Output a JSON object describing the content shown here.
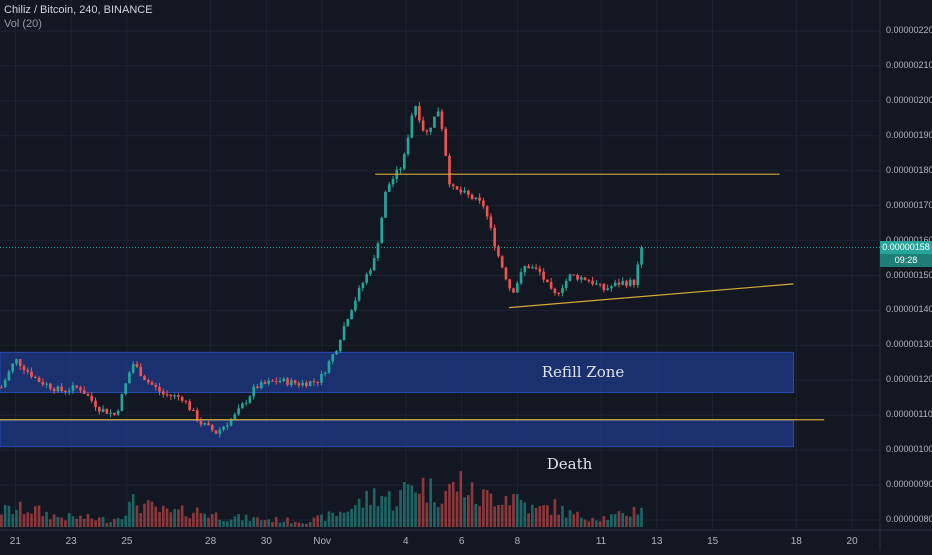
{
  "header": {
    "symbol_line": "Chiliz / Bitcoin, 240, BINANCE",
    "volume_line": "Vol (20)"
  },
  "price_tag": {
    "price": "0.00000158",
    "countdown": "09:28"
  },
  "annotations": {
    "refill_zone": "Refill Zone",
    "death": "Death"
  },
  "colors": {
    "background": "#131722",
    "grid": "#1f2433",
    "up": "#26a69a",
    "down": "#ef5350",
    "zone": "#1e3a8a",
    "trendline": "#d4a93a",
    "price_line": "#26a69a"
  },
  "chart_data": {
    "type": "candlestick",
    "title": "Chiliz / Bitcoin, 240, BINANCE",
    "indicator": "Vol (20)",
    "y_tick_labels": [
      "0.00000220",
      "0.00000210",
      "0.00000200",
      "0.00000190",
      "0.00000180",
      "0.00000170",
      "0.00000160",
      "0.00000150",
      "0.00000140",
      "0.00000130",
      "0.00000120",
      "0.00000110",
      "0.00000100",
      "0.00000090",
      "0.00000080"
    ],
    "y_tick_values": [
      2.2e-06,
      2.1e-06,
      2e-06,
      1.9e-06,
      1.8e-06,
      1.7e-06,
      1.6e-06,
      1.5e-06,
      1.4e-06,
      1.3e-06,
      1.2e-06,
      1.1e-06,
      1e-06,
      9e-07,
      8e-07
    ],
    "ylim": [
      7.8e-07,
      2.24e-06
    ],
    "x_tick_labels": [
      "21",
      "23",
      "25",
      "28",
      "30",
      "Nov",
      "4",
      "6",
      "8",
      "11",
      "13",
      "15",
      "18",
      "20"
    ],
    "x_tick_values": [
      21,
      23,
      25,
      28,
      30,
      32,
      35,
      37,
      39,
      42,
      44,
      46,
      49,
      51
    ],
    "xlim": [
      20.45,
      52.0
    ],
    "last_price": 1.58e-06,
    "zones": [
      {
        "label": "Refill Zone",
        "from_x": 20.45,
        "to_x": 48.9,
        "low": 1.165e-06,
        "high": 1.28e-06
      },
      {
        "label": "Death",
        "from_x": 20.45,
        "to_x": 48.9,
        "low": 1.01e-06,
        "high": 1.085e-06
      }
    ],
    "lines": [
      {
        "x1": 33.9,
        "y1": 1.79e-06,
        "x2": 48.4,
        "y2": 1.79e-06
      },
      {
        "x1": 20.45,
        "y1": 1.087e-06,
        "x2": 50.0,
        "y2": 1.087e-06
      },
      {
        "x1": 38.7,
        "y1": 1.408e-06,
        "x2": 48.9,
        "y2": 1.476e-06
      }
    ],
    "key_points": [
      {
        "x": 20.5,
        "y": 1.18e-06
      },
      {
        "x": 21.0,
        "y": 1.26e-06
      },
      {
        "x": 21.8,
        "y": 1.2e-06
      },
      {
        "x": 22.6,
        "y": 1.17e-06
      },
      {
        "x": 23.3,
        "y": 1.18e-06
      },
      {
        "x": 24.0,
        "y": 1.12e-06
      },
      {
        "x": 24.6,
        "y": 1.1e-06
      },
      {
        "x": 25.2,
        "y": 1.25e-06
      },
      {
        "x": 25.7,
        "y": 1.2e-06
      },
      {
        "x": 26.3,
        "y": 1.16e-06
      },
      {
        "x": 27.0,
        "y": 1.15e-06
      },
      {
        "x": 27.6,
        "y": 1.08e-06
      },
      {
        "x": 28.2,
        "y": 1.05e-06
      },
      {
        "x": 28.9,
        "y": 1.1e-06
      },
      {
        "x": 29.6,
        "y": 1.18e-06
      },
      {
        "x": 30.4,
        "y": 1.2e-06
      },
      {
        "x": 31.2,
        "y": 1.19e-06
      },
      {
        "x": 31.9,
        "y": 1.2e-06
      },
      {
        "x": 32.5,
        "y": 1.29e-06
      },
      {
        "x": 32.9,
        "y": 1.38e-06
      },
      {
        "x": 33.4,
        "y": 1.47e-06
      },
      {
        "x": 33.9,
        "y": 1.55e-06
      },
      {
        "x": 34.3,
        "y": 1.75e-06
      },
      {
        "x": 34.9,
        "y": 1.82e-06
      },
      {
        "x": 35.3,
        "y": 2e-06
      },
      {
        "x": 35.7,
        "y": 1.9e-06
      },
      {
        "x": 36.2,
        "y": 1.98e-06
      },
      {
        "x": 36.6,
        "y": 1.75e-06
      },
      {
        "x": 37.2,
        "y": 1.73e-06
      },
      {
        "x": 37.8,
        "y": 1.7e-06
      },
      {
        "x": 38.3,
        "y": 1.56e-06
      },
      {
        "x": 38.8,
        "y": 1.45e-06
      },
      {
        "x": 39.3,
        "y": 1.53e-06
      },
      {
        "x": 39.8,
        "y": 1.51e-06
      },
      {
        "x": 40.3,
        "y": 1.44e-06
      },
      {
        "x": 40.9,
        "y": 1.5e-06
      },
      {
        "x": 41.5,
        "y": 1.49e-06
      },
      {
        "x": 42.1,
        "y": 1.46e-06
      },
      {
        "x": 42.7,
        "y": 1.48e-06
      },
      {
        "x": 43.2,
        "y": 1.48e-06
      },
      {
        "x": 43.45,
        "y": 1.58e-06
      }
    ],
    "volume_envelope": [
      {
        "x": 20.5,
        "v": 0.35
      },
      {
        "x": 21.5,
        "v": 0.4
      },
      {
        "x": 22.5,
        "v": 0.22
      },
      {
        "x": 23.5,
        "v": 0.2
      },
      {
        "x": 24.5,
        "v": 0.15
      },
      {
        "x": 25.3,
        "v": 0.55
      },
      {
        "x": 25.8,
        "v": 0.42
      },
      {
        "x": 26.5,
        "v": 0.3
      },
      {
        "x": 27.5,
        "v": 0.35
      },
      {
        "x": 28.5,
        "v": 0.22
      },
      {
        "x": 29.5,
        "v": 0.18
      },
      {
        "x": 30.5,
        "v": 0.15
      },
      {
        "x": 31.5,
        "v": 0.12
      },
      {
        "x": 32.5,
        "v": 0.28
      },
      {
        "x": 33.5,
        "v": 0.55
      },
      {
        "x": 34.0,
        "v": 0.75
      },
      {
        "x": 34.6,
        "v": 0.55
      },
      {
        "x": 35.3,
        "v": 1.0
      },
      {
        "x": 36.0,
        "v": 0.75
      },
      {
        "x": 36.6,
        "v": 0.8
      },
      {
        "x": 37.0,
        "v": 1.0
      },
      {
        "x": 37.5,
        "v": 0.6
      },
      {
        "x": 38.3,
        "v": 0.7
      },
      {
        "x": 39.0,
        "v": 0.65
      },
      {
        "x": 39.6,
        "v": 0.35
      },
      {
        "x": 40.3,
        "v": 0.45
      },
      {
        "x": 41.0,
        "v": 0.25
      },
      {
        "x": 42.0,
        "v": 0.2
      },
      {
        "x": 42.8,
        "v": 0.25
      },
      {
        "x": 43.45,
        "v": 0.45
      }
    ],
    "volume_max_price_units": 1.6e-07,
    "grid": true,
    "legend": "top-left"
  }
}
